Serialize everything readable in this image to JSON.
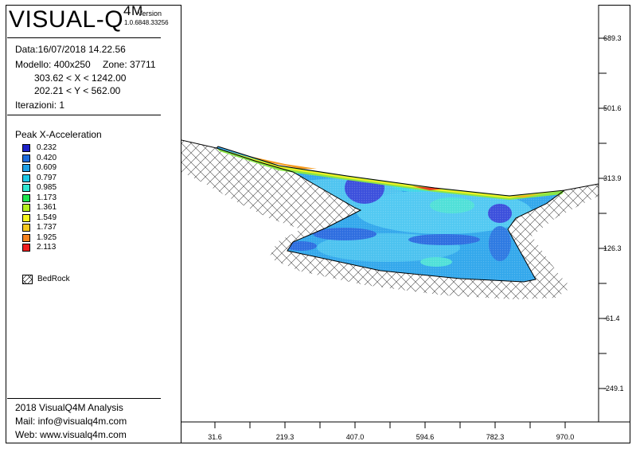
{
  "header": {
    "app_name": "VISUAL-Q",
    "app_super": "4M",
    "version_label": "Version",
    "version_number": "1.0.6848.33256"
  },
  "info": {
    "date": "Data:16/07/2018 14.22.56",
    "model": "Modello: 400x250",
    "zone": "Zone: 37711",
    "x_range": "303.62 < X < 1242.00",
    "y_range": "202.21 < Y < 562.00",
    "iterations": "Iterazioni: 1"
  },
  "legend": {
    "title": "Peak X-Acceleration",
    "items": [
      {
        "label": "0.232",
        "color": "#1e22c8"
      },
      {
        "label": "0.420",
        "color": "#1e6bdc"
      },
      {
        "label": "0.609",
        "color": "#1ea0e6"
      },
      {
        "label": "0.797",
        "color": "#1ec8e6"
      },
      {
        "label": "0.985",
        "color": "#2ee6d2"
      },
      {
        "label": "1.173",
        "color": "#1ee650"
      },
      {
        "label": "1.361",
        "color": "#b4f01e"
      },
      {
        "label": "1.549",
        "color": "#f5f51e"
      },
      {
        "label": "1.737",
        "color": "#f5c81e"
      },
      {
        "label": "1.925",
        "color": "#f5821e"
      },
      {
        "label": "2.113",
        "color": "#f01e1e"
      }
    ],
    "bedrock_label": "BedRock"
  },
  "footer": {
    "line1": "2018 VisualQ4M Analysis",
    "line2": "Mail: info@visualq4m.com",
    "line3": "Web: www.visualq4m.com"
  },
  "axes": {
    "x_ticks": [
      "31.6",
      "219.3",
      "407.0",
      "594.6",
      "782.3",
      "970.0"
    ],
    "y_ticks": [
      "689.3",
      "501.6",
      "313.9",
      "126.3",
      "-61.4",
      "-249.1"
    ]
  }
}
